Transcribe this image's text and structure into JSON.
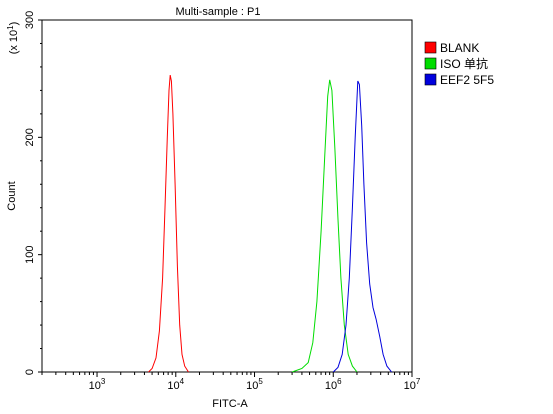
{
  "chart_data": {
    "type": "line",
    "title": "Multi-sample : P1",
    "xlabel": "FITC-A",
    "ylabel": "Count",
    "y_multiplier": "(x 10",
    "y_multiplier_exp": "1",
    "x_scale": "log",
    "xlim": [
      200,
      10000000
    ],
    "ylim": [
      0,
      30
    ],
    "y_ticks": [
      0,
      10,
      20,
      30
    ],
    "y_tick_labels": [
      "0",
      "100",
      "200",
      "300"
    ],
    "x_ticks": [
      {
        "value": 1000,
        "base": "10",
        "exp": "3"
      },
      {
        "value": 10000,
        "base": "10",
        "exp": "4"
      },
      {
        "value": 100000,
        "base": "10",
        "exp": "5"
      },
      {
        "value": 1000000,
        "base": "10",
        "exp": "6"
      },
      {
        "value": 10000000,
        "base": "10",
        "exp": "7"
      }
    ],
    "legend_position": "right",
    "grid": false,
    "series": [
      {
        "name": "BLANK",
        "color": "#ff0000",
        "points": [
          [
            4500,
            0
          ],
          [
            5000,
            0.3
          ],
          [
            5600,
            1.2
          ],
          [
            6200,
            3.5
          ],
          [
            6800,
            8
          ],
          [
            7300,
            14
          ],
          [
            7800,
            20
          ],
          [
            8200,
            24
          ],
          [
            8500,
            25.3
          ],
          [
            8800,
            24.8
          ],
          [
            9200,
            22
          ],
          [
            9800,
            16
          ],
          [
            10500,
            9
          ],
          [
            11200,
            4
          ],
          [
            12000,
            1.5
          ],
          [
            13000,
            0.5
          ],
          [
            14500,
            0
          ]
        ]
      },
      {
        "name": "ISO 单抗",
        "color": "#00dd00",
        "points": [
          [
            300000,
            0
          ],
          [
            400000,
            0.3
          ],
          [
            480000,
            0.8
          ],
          [
            550000,
            2.5
          ],
          [
            620000,
            6
          ],
          [
            700000,
            12
          ],
          [
            780000,
            18.5
          ],
          [
            850000,
            23.5
          ],
          [
            900000,
            24.9
          ],
          [
            960000,
            24
          ],
          [
            1050000,
            19
          ],
          [
            1150000,
            13
          ],
          [
            1250000,
            8
          ],
          [
            1380000,
            4
          ],
          [
            1550000,
            1.5
          ],
          [
            1750000,
            0.5
          ],
          [
            2000000,
            0
          ]
        ]
      },
      {
        "name": "EEF2 5F5",
        "color": "#0000dd",
        "points": [
          [
            1000000,
            0
          ],
          [
            1150000,
            0.4
          ],
          [
            1300000,
            1.5
          ],
          [
            1450000,
            4
          ],
          [
            1600000,
            8
          ],
          [
            1750000,
            14
          ],
          [
            1900000,
            20
          ],
          [
            2050000,
            24.8
          ],
          [
            2150000,
            24.5
          ],
          [
            2300000,
            21
          ],
          [
            2450000,
            16
          ],
          [
            2650000,
            11
          ],
          [
            2900000,
            7.5
          ],
          [
            3200000,
            5.5
          ],
          [
            3500000,
            4.5
          ],
          [
            3900000,
            3
          ],
          [
            4300000,
            1.5
          ],
          [
            4800000,
            0.5
          ],
          [
            5500000,
            0
          ]
        ]
      }
    ]
  }
}
